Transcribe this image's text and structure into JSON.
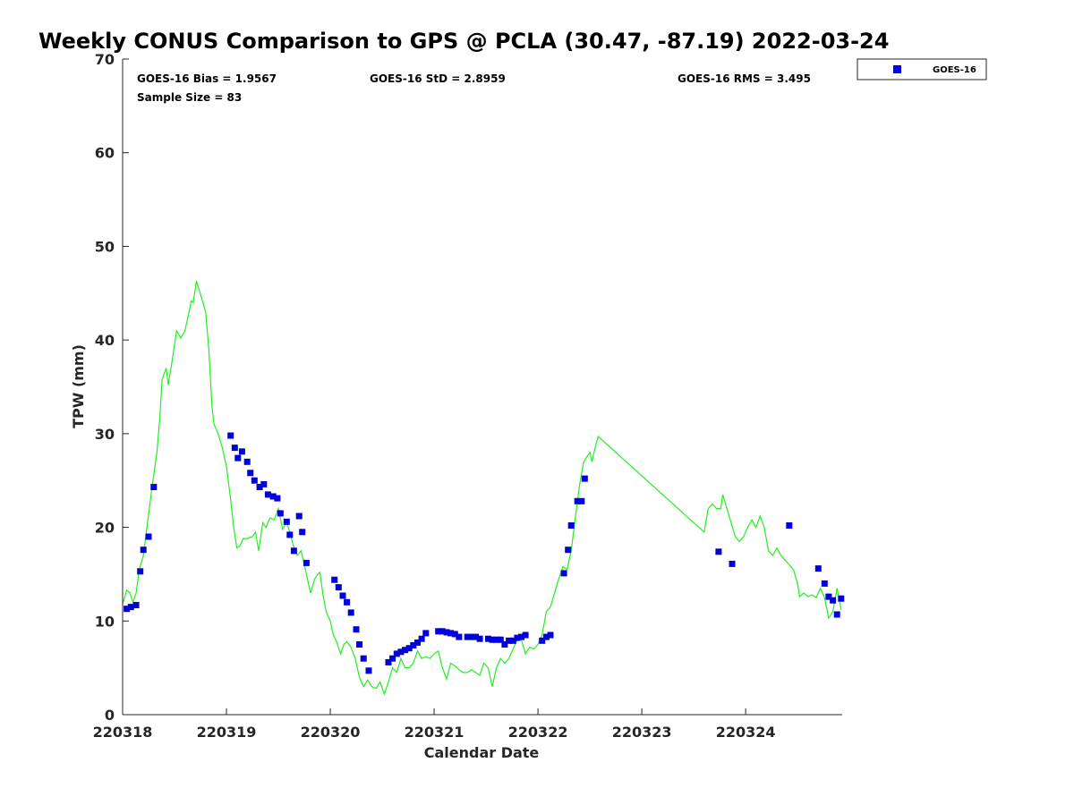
{
  "chart_data": {
    "type": "scatter",
    "title": "Weekly CONUS Comparison to GPS @ PCLA (30.47, -87.19) 2022-03-24",
    "xlabel": "Calendar Date",
    "ylabel": "TPW (mm)",
    "xlim": [
      220318,
      220324.93
    ],
    "ylim": [
      0,
      70
    ],
    "x_ticks": [
      {
        "value": 220318,
        "label": "220318"
      },
      {
        "value": 220319,
        "label": "220319"
      },
      {
        "value": 220320,
        "label": "220320"
      },
      {
        "value": 220321,
        "label": "220321"
      },
      {
        "value": 220322,
        "label": "220322"
      },
      {
        "value": 220323,
        "label": "220323"
      },
      {
        "value": 220324,
        "label": "220324"
      }
    ],
    "y_ticks": [
      {
        "value": 0,
        "label": "0"
      },
      {
        "value": 10,
        "label": "10"
      },
      {
        "value": 20,
        "label": "20"
      },
      {
        "value": 30,
        "label": "30"
      },
      {
        "value": 40,
        "label": "40"
      },
      {
        "value": 50,
        "label": "50"
      },
      {
        "value": 60,
        "label": "60"
      },
      {
        "value": 70,
        "label": "70"
      }
    ],
    "grid": false,
    "legend": {
      "position": "top-right",
      "entries": [
        "GOES-16"
      ]
    },
    "stats": {
      "bias": "GOES-16 Bias = 1.9567",
      "std": "GOES-16 StD = 2.8959",
      "rms": "GOES-16 RMS = 3.495",
      "sample": "Sample Size = 83"
    },
    "series": [
      {
        "name": "GOES-16",
        "kind": "scatter",
        "color": "#0000dd",
        "points": [
          [
            220318.04,
            11.3
          ],
          [
            220318.08,
            11.5
          ],
          [
            220318.13,
            11.7
          ],
          [
            220318.17,
            15.3
          ],
          [
            220318.2,
            17.6
          ],
          [
            220318.25,
            19.0
          ],
          [
            220318.3,
            24.3
          ],
          [
            220319.04,
            29.8
          ],
          [
            220319.08,
            28.5
          ],
          [
            220319.11,
            27.4
          ],
          [
            220319.15,
            28.1
          ],
          [
            220319.2,
            27.0
          ],
          [
            220319.23,
            25.8
          ],
          [
            220319.27,
            25.0
          ],
          [
            220319.32,
            24.3
          ],
          [
            220319.36,
            24.6
          ],
          [
            220319.4,
            23.5
          ],
          [
            220319.45,
            23.3
          ],
          [
            220319.49,
            23.1
          ],
          [
            220319.52,
            21.5
          ],
          [
            220319.58,
            20.6
          ],
          [
            220319.61,
            19.2
          ],
          [
            220319.65,
            17.5
          ],
          [
            220319.7,
            21.2
          ],
          [
            220319.73,
            19.5
          ],
          [
            220319.77,
            16.2
          ],
          [
            220320.04,
            14.4
          ],
          [
            220320.08,
            13.6
          ],
          [
            220320.12,
            12.7
          ],
          [
            220320.16,
            12.0
          ],
          [
            220320.2,
            10.9
          ],
          [
            220320.25,
            9.1
          ],
          [
            220320.28,
            7.5
          ],
          [
            220320.32,
            6.0
          ],
          [
            220320.37,
            4.7
          ],
          [
            220320.56,
            5.6
          ],
          [
            220320.6,
            6.0
          ],
          [
            220320.64,
            6.5
          ],
          [
            220320.68,
            6.7
          ],
          [
            220320.72,
            6.9
          ],
          [
            220320.76,
            7.1
          ],
          [
            220320.8,
            7.4
          ],
          [
            220320.84,
            7.7
          ],
          [
            220320.88,
            8.1
          ],
          [
            220320.92,
            8.7
          ],
          [
            220321.04,
            8.9
          ],
          [
            220321.08,
            8.9
          ],
          [
            220321.12,
            8.8
          ],
          [
            220321.16,
            8.7
          ],
          [
            220321.2,
            8.6
          ],
          [
            220321.24,
            8.3
          ],
          [
            220321.32,
            8.3
          ],
          [
            220321.36,
            8.3
          ],
          [
            220321.4,
            8.3
          ],
          [
            220321.44,
            8.1
          ],
          [
            220321.52,
            8.1
          ],
          [
            220321.56,
            8.0
          ],
          [
            220321.6,
            8.0
          ],
          [
            220321.64,
            8.0
          ],
          [
            220321.68,
            7.5
          ],
          [
            220321.72,
            7.9
          ],
          [
            220321.76,
            7.9
          ],
          [
            220321.8,
            8.2
          ],
          [
            220321.84,
            8.3
          ],
          [
            220321.88,
            8.5
          ],
          [
            220322.04,
            7.9
          ],
          [
            220322.08,
            8.3
          ],
          [
            220322.12,
            8.5
          ],
          [
            220322.25,
            15.1
          ],
          [
            220322.29,
            17.6
          ],
          [
            220322.32,
            20.2
          ],
          [
            220322.38,
            22.8
          ],
          [
            220322.42,
            22.8
          ],
          [
            220322.45,
            25.2
          ],
          [
            220323.74,
            17.4
          ],
          [
            220323.87,
            16.1
          ],
          [
            220324.42,
            20.2
          ],
          [
            220324.7,
            15.6
          ],
          [
            220324.76,
            14.0
          ],
          [
            220324.8,
            12.6
          ],
          [
            220324.84,
            12.2
          ],
          [
            220324.88,
            10.7
          ],
          [
            220324.92,
            12.4
          ]
        ]
      },
      {
        "name": "GPS",
        "kind": "line",
        "color": "#22ee22",
        "points": [
          [
            220318.0,
            11.8
          ],
          [
            220318.04,
            13.3
          ],
          [
            220318.07,
            13.0
          ],
          [
            220318.1,
            12.0
          ],
          [
            220318.13,
            13.0
          ],
          [
            220318.16,
            15.5
          ],
          [
            220318.2,
            17.0
          ],
          [
            220318.24,
            20.5
          ],
          [
            220318.28,
            24.0
          ],
          [
            220318.33,
            28.0
          ],
          [
            220318.36,
            32.0
          ],
          [
            220318.38,
            35.8
          ],
          [
            220318.42,
            37.0
          ],
          [
            220318.44,
            35.2
          ],
          [
            220318.48,
            38.0
          ],
          [
            220318.52,
            41.0
          ],
          [
            220318.56,
            40.2
          ],
          [
            220318.6,
            41.0
          ],
          [
            220318.64,
            43.0
          ],
          [
            220318.66,
            44.2
          ],
          [
            220318.68,
            44.0
          ],
          [
            220318.71,
            46.3
          ],
          [
            220318.76,
            44.5
          ],
          [
            220318.8,
            43.0
          ],
          [
            220318.83,
            39.0
          ],
          [
            220318.86,
            33.0
          ],
          [
            220318.88,
            31.0
          ],
          [
            220318.92,
            30.0
          ],
          [
            220318.96,
            28.5
          ],
          [
            220319.0,
            26.5
          ],
          [
            220319.04,
            23.0
          ],
          [
            220319.07,
            20.0
          ],
          [
            220319.1,
            17.8
          ],
          [
            220319.13,
            18.0
          ],
          [
            220319.16,
            18.8
          ],
          [
            220319.2,
            18.8
          ],
          [
            220319.25,
            19.0
          ],
          [
            220319.28,
            19.5
          ],
          [
            220319.31,
            17.5
          ],
          [
            220319.35,
            20.5
          ],
          [
            220319.38,
            20.0
          ],
          [
            220319.42,
            21.0
          ],
          [
            220319.46,
            20.8
          ],
          [
            220319.5,
            22.0
          ],
          [
            220319.54,
            19.8
          ],
          [
            220319.58,
            20.5
          ],
          [
            220319.61,
            19.5
          ],
          [
            220319.64,
            18.2
          ],
          [
            220319.68,
            17.0
          ],
          [
            220319.72,
            17.5
          ],
          [
            220319.74,
            16.5
          ],
          [
            220319.78,
            14.5
          ],
          [
            220319.81,
            13.0
          ],
          [
            220319.85,
            14.5
          ],
          [
            220319.88,
            15.0
          ],
          [
            220319.9,
            15.2
          ],
          [
            220319.93,
            12.8
          ],
          [
            220319.96,
            11.0
          ],
          [
            220320.0,
            10.0
          ],
          [
            220320.03,
            8.5
          ],
          [
            220320.06,
            7.8
          ],
          [
            220320.1,
            6.5
          ],
          [
            220320.13,
            7.5
          ],
          [
            220320.16,
            7.8
          ],
          [
            220320.2,
            7.2
          ],
          [
            220320.24,
            6.0
          ],
          [
            220320.28,
            4.0
          ],
          [
            220320.32,
            3.0
          ],
          [
            220320.36,
            3.7
          ],
          [
            220320.4,
            3.0
          ],
          [
            220320.44,
            2.8
          ],
          [
            220320.48,
            3.5
          ],
          [
            220320.52,
            2.2
          ],
          [
            220320.56,
            3.5
          ],
          [
            220320.6,
            5.0
          ],
          [
            220320.64,
            4.5
          ],
          [
            220320.68,
            6.0
          ],
          [
            220320.72,
            5.0
          ],
          [
            220320.76,
            5.0
          ],
          [
            220320.8,
            5.5
          ],
          [
            220320.84,
            6.8
          ],
          [
            220320.88,
            6.0
          ],
          [
            220320.92,
            6.2
          ],
          [
            220320.96,
            6.0
          ],
          [
            220321.0,
            6.5
          ],
          [
            220321.04,
            6.8
          ],
          [
            220321.08,
            5.0
          ],
          [
            220321.12,
            3.8
          ],
          [
            220321.16,
            5.5
          ],
          [
            220321.2,
            5.2
          ],
          [
            220321.24,
            4.8
          ],
          [
            220321.28,
            4.5
          ],
          [
            220321.32,
            4.5
          ],
          [
            220321.36,
            4.8
          ],
          [
            220321.4,
            4.5
          ],
          [
            220321.44,
            4.2
          ],
          [
            220321.48,
            5.5
          ],
          [
            220321.52,
            5.0
          ],
          [
            220321.56,
            3.0
          ],
          [
            220321.6,
            5.0
          ],
          [
            220321.64,
            6.0
          ],
          [
            220321.68,
            5.5
          ],
          [
            220321.72,
            6.0
          ],
          [
            220321.76,
            7.0
          ],
          [
            220321.8,
            8.0
          ],
          [
            220321.84,
            8.0
          ],
          [
            220321.88,
            6.5
          ],
          [
            220321.92,
            7.2
          ],
          [
            220321.96,
            7.0
          ],
          [
            220322.0,
            7.5
          ],
          [
            220322.04,
            8.5
          ],
          [
            220322.08,
            11.0
          ],
          [
            220322.12,
            11.5
          ],
          [
            220322.16,
            13.0
          ],
          [
            220322.2,
            14.5
          ],
          [
            220322.24,
            15.8
          ],
          [
            220322.28,
            15.5
          ],
          [
            220322.32,
            17.5
          ],
          [
            220322.36,
            21.0
          ],
          [
            220322.4,
            24.5
          ],
          [
            220322.44,
            27.0
          ],
          [
            220322.47,
            27.5
          ],
          [
            220322.5,
            28.0
          ],
          [
            220322.52,
            27.0
          ],
          [
            220322.55,
            28.5
          ],
          [
            220322.58,
            29.7
          ],
          [
            220323.6,
            19.5
          ],
          [
            220323.64,
            22.0
          ],
          [
            220323.68,
            22.5
          ],
          [
            220323.72,
            22.0
          ],
          [
            220323.76,
            22.0
          ],
          [
            220323.78,
            23.5
          ],
          [
            220323.82,
            22.0
          ],
          [
            220323.86,
            20.5
          ],
          [
            220323.9,
            19.0
          ],
          [
            220323.94,
            18.5
          ],
          [
            220323.98,
            19.0
          ],
          [
            220324.02,
            20.0
          ],
          [
            220324.06,
            20.8
          ],
          [
            220324.1,
            20.0
          ],
          [
            220324.14,
            21.2
          ],
          [
            220324.18,
            20.0
          ],
          [
            220324.22,
            17.5
          ],
          [
            220324.26,
            17.0
          ],
          [
            220324.3,
            17.8
          ],
          [
            220324.34,
            17.0
          ],
          [
            220324.38,
            16.5
          ],
          [
            220324.42,
            16.0
          ],
          [
            220324.46,
            15.5
          ],
          [
            220324.5,
            14.0
          ],
          [
            220324.52,
            12.6
          ],
          [
            220324.56,
            13.0
          ],
          [
            220324.6,
            12.6
          ],
          [
            220324.64,
            12.8
          ],
          [
            220324.68,
            12.5
          ],
          [
            220324.72,
            13.5
          ],
          [
            220324.76,
            12.5
          ],
          [
            220324.8,
            10.3
          ],
          [
            220324.84,
            11.0
          ],
          [
            220324.88,
            13.5
          ],
          [
            220324.92,
            11.2
          ]
        ]
      }
    ]
  }
}
